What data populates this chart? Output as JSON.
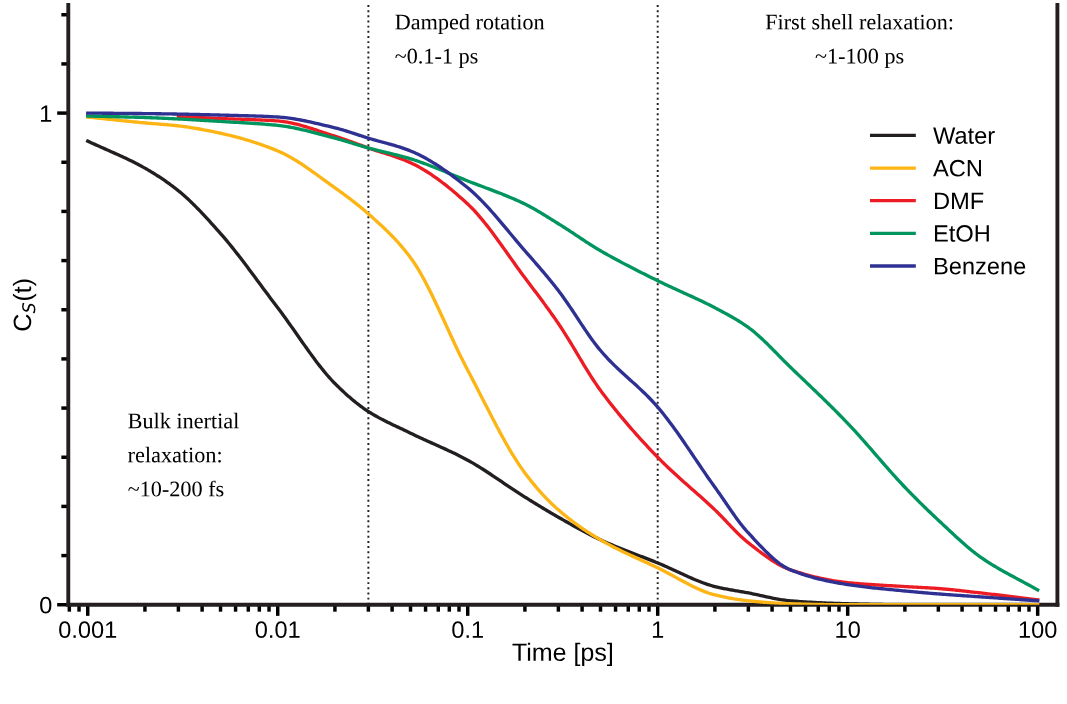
{
  "chart_data": {
    "type": "line",
    "xlabel": "Time [ps]",
    "ylabel": "C$_{S}$(t)",
    "x": [
      0.001,
      0.002,
      0.003,
      0.005,
      0.01,
      0.02,
      0.03,
      0.05,
      0.1,
      0.2,
      0.3,
      0.5,
      1,
      2,
      3,
      5,
      10,
      20,
      30,
      50,
      100
    ],
    "series": [
      {
        "name": "Water",
        "color": "#231f20",
        "values": [
          0.943,
          0.888,
          0.842,
          0.755,
          0.604,
          0.45,
          0.393,
          0.349,
          0.294,
          0.219,
          0.178,
          0.132,
          0.085,
          0.037,
          0.024,
          0.008,
          0.002,
          0,
          0,
          0,
          0
        ]
      },
      {
        "name": "ACN",
        "color": "#fdb515",
        "values": [
          0.992,
          0.98,
          0.974,
          0.959,
          0.923,
          0.848,
          0.795,
          0.706,
          0.477,
          0.268,
          0.193,
          0.132,
          0.075,
          0.02,
          0.008,
          0.002,
          0,
          0,
          0,
          0,
          0
        ]
      },
      {
        "name": "DMF",
        "color": "#ed1c24",
        "values": [
          null,
          null,
          0.993,
          0.989,
          0.984,
          0.953,
          0.929,
          0.899,
          0.815,
          0.665,
          0.572,
          0.436,
          0.3,
          0.193,
          0.126,
          0.071,
          0.045,
          0.037,
          0.033,
          0.024,
          0.01
        ]
      },
      {
        "name": "EtOH",
        "color": "#00945e",
        "values": [
          0.994,
          0.991,
          0.988,
          0.983,
          0.975,
          0.949,
          0.929,
          0.907,
          0.862,
          0.815,
          0.775,
          0.72,
          0.659,
          0.604,
          0.564,
          0.483,
          0.369,
          0.239,
          0.172,
          0.097,
          0.03
        ]
      },
      {
        "name": "Benzene",
        "color": "#2e3192",
        "values": [
          1.0,
          0.999,
          0.998,
          0.996,
          0.992,
          0.97,
          0.949,
          0.923,
          0.848,
          0.72,
          0.639,
          0.517,
          0.402,
          0.239,
          0.146,
          0.071,
          0.041,
          0.028,
          0.022,
          0.016,
          0.008
        ]
      }
    ],
    "log": "x",
    "xlim": [
      0.00079,
      127
    ],
    "ylim": [
      0,
      1.22
    ],
    "xticks": [
      0.001,
      0.01,
      0.1,
      1,
      10,
      100
    ],
    "yticks": [
      0,
      1
    ],
    "ref_lines": [
      {
        "axis": "x",
        "value": 0.03,
        "label": null,
        "color": "#231f20",
        "line_style": "dotted"
      },
      {
        "axis": "x",
        "value": 1,
        "label": null,
        "color": "#231f20",
        "line_style": "dotted"
      }
    ],
    "annotations": [
      "Damped rotation\n~0.1-1 ps",
      "First shell relaxation:\n~1-100 ps",
      "Bulk inertial\nrelaxation:\n~10-200 fs"
    ],
    "legend": "right",
    "grid": false,
    "marker": "none",
    "line_style": "solid"
  }
}
